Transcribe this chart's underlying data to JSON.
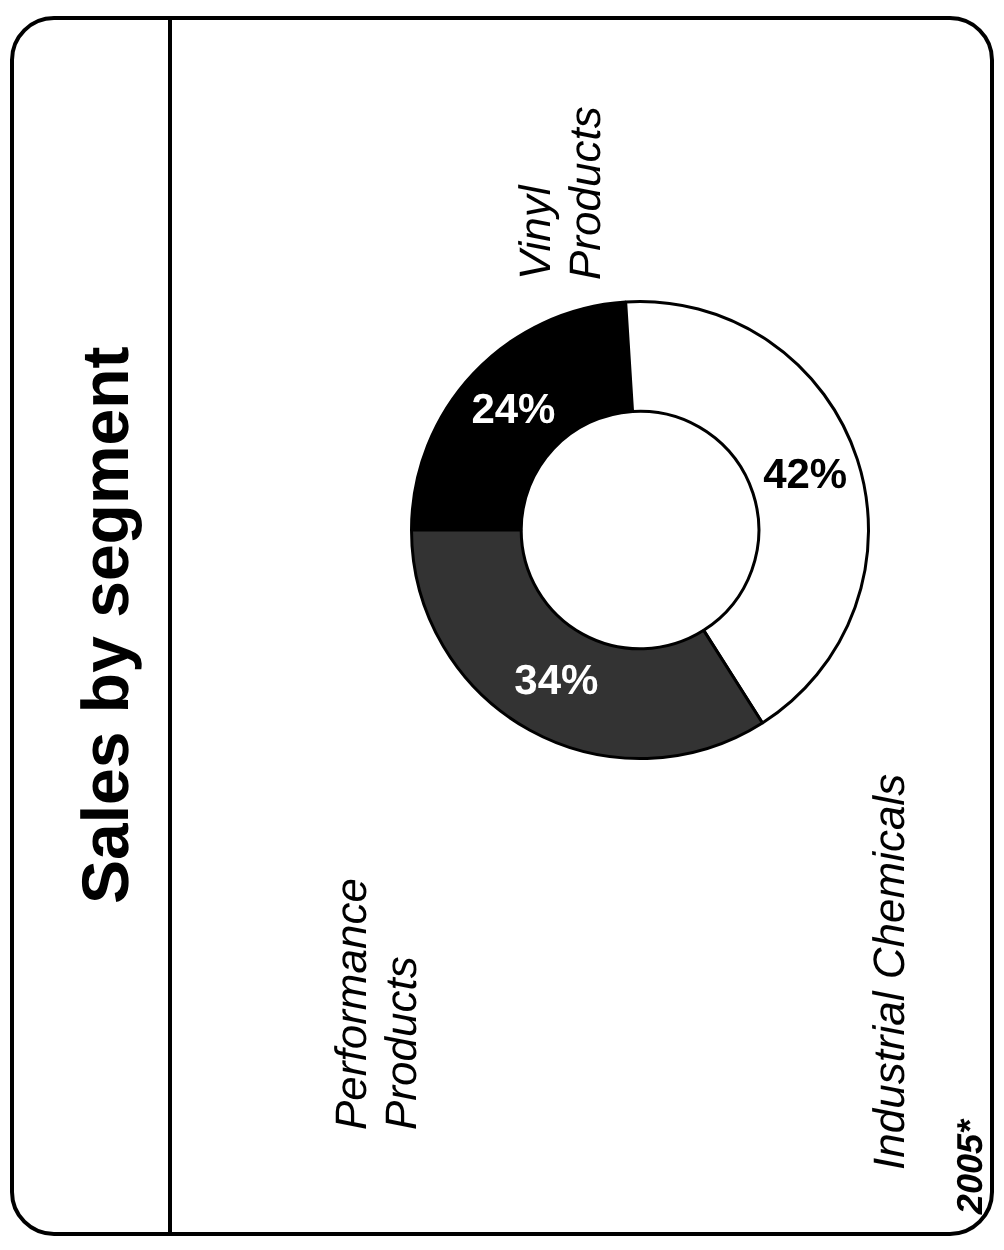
{
  "chart_data": {
    "type": "donut",
    "title": "Sales by segment",
    "categories": [
      "Vinyl Products",
      "Industrial Chemicals",
      "Performance Products"
    ],
    "values": [
      24,
      42,
      34
    ],
    "value_labels": [
      "24%",
      "42%",
      "34%"
    ],
    "colors": [
      "#000000",
      "#ffffff",
      "#333333"
    ],
    "annotations": [
      "2005*"
    ]
  }
}
